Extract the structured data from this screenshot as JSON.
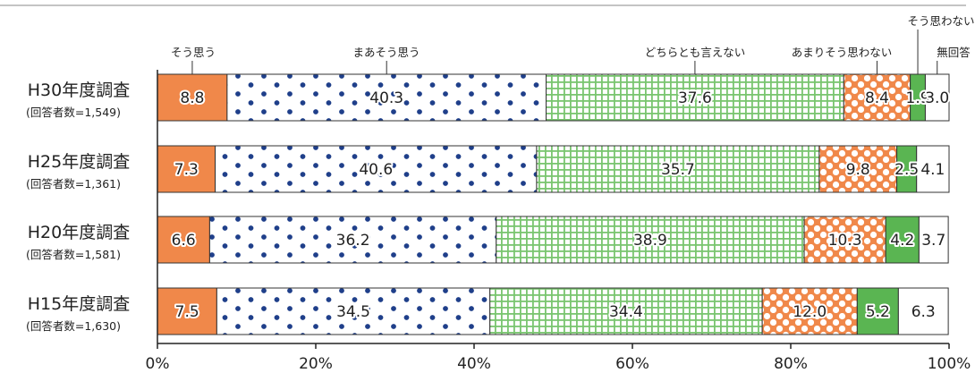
{
  "chart_data": {
    "type": "bar",
    "orientation": "horizontal",
    "stacked": true,
    "xlim": [
      0,
      100
    ],
    "xticks": [
      "0%",
      "20%",
      "40%",
      "60%",
      "80%",
      "100%"
    ],
    "grid": false,
    "categories": [
      {
        "label": "H30年度調査",
        "sublabel": "(回答者数=1,549)"
      },
      {
        "label": "H25年度調査",
        "sublabel": "(回答者数=1,361)"
      },
      {
        "label": "H20年度調査",
        "sublabel": "(回答者数=1,581)"
      },
      {
        "label": "H15年度調査",
        "sublabel": "(回答者数=1,630)"
      }
    ],
    "series": [
      {
        "name": "そう思う",
        "color": "#f0884a",
        "pattern": "solid",
        "values": [
          8.8,
          7.3,
          6.6,
          7.5
        ]
      },
      {
        "name": "まあそう思う",
        "color": "#1f3f8a",
        "pattern": "dots",
        "values": [
          40.3,
          40.6,
          36.2,
          34.5
        ]
      },
      {
        "name": "どちらとも言えない",
        "color": "#6cbf62",
        "pattern": "grid",
        "values": [
          37.6,
          35.7,
          38.9,
          34.4
        ]
      },
      {
        "name": "あまりそう思わない",
        "color": "#f0884a",
        "pattern": "polka",
        "values": [
          8.4,
          9.8,
          10.3,
          12.0
        ]
      },
      {
        "name": "そう思わない",
        "color": "#5ab552",
        "pattern": "solid",
        "values": [
          1.9,
          2.5,
          4.2,
          5.2
        ]
      },
      {
        "name": "無回答",
        "color": "#ffffff",
        "pattern": "solid",
        "values": [
          3.0,
          4.1,
          3.7,
          6.3
        ]
      }
    ],
    "legend": "series names printed above the top bar with leader lines"
  }
}
